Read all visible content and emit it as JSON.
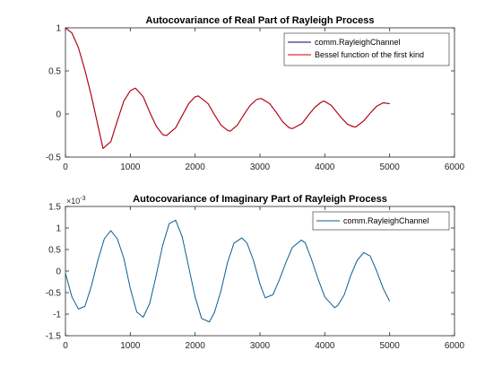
{
  "chart_data": [
    {
      "type": "line",
      "title": "Autocovariance of Real Part of Rayleigh Process",
      "xlabel": "",
      "ylabel": "",
      "xlim": [
        0,
        6000
      ],
      "ylim": [
        -0.5,
        1
      ],
      "xticks": [
        0,
        1000,
        2000,
        3000,
        4000,
        5000,
        6000
      ],
      "xtick_labels": [
        "0",
        "1000",
        "2000",
        "3000",
        "4000",
        "5000",
        "6000"
      ],
      "yticks": [
        -0.5,
        0,
        0.5,
        1
      ],
      "ytick_labels": [
        "-0.5",
        "0",
        "0.5",
        "1"
      ],
      "exponent_label": "",
      "grid": false,
      "legend_position": "top-right",
      "series": [
        {
          "name": "comm.RayleighChannel",
          "color": "#000080",
          "x": [
            0,
            100,
            200,
            300,
            400,
            500,
            580,
            700,
            800,
            900,
            1000,
            1080,
            1200,
            1300,
            1400,
            1500,
            1560,
            1700,
            1800,
            1900,
            2000,
            2050,
            2200,
            2300,
            2400,
            2500,
            2540,
            2650,
            2750,
            2850,
            2950,
            3020,
            3150,
            3250,
            3350,
            3450,
            3500,
            3650,
            3750,
            3850,
            3950,
            3990,
            4100,
            4250,
            4350,
            4450,
            4480,
            4600,
            4700,
            4800,
            4900,
            5000
          ],
          "values": [
            1,
            0.94,
            0.77,
            0.51,
            0.21,
            -0.13,
            -0.4,
            -0.32,
            -0.08,
            0.15,
            0.27,
            0.3,
            0.2,
            0.02,
            -0.14,
            -0.24,
            -0.25,
            -0.16,
            -0.02,
            0.12,
            0.2,
            0.21,
            0.12,
            -0.01,
            -0.13,
            -0.19,
            -0.2,
            -0.13,
            -0.01,
            0.1,
            0.17,
            0.18,
            0.12,
            0.02,
            -0.09,
            -0.16,
            -0.17,
            -0.11,
            -0.01,
            0.08,
            0.14,
            0.15,
            0.1,
            -0.04,
            -0.12,
            -0.15,
            -0.15,
            -0.08,
            0.01,
            0.09,
            0.13,
            0.12
          ]
        },
        {
          "name": "Bessel function of the first kind",
          "color": "#cc0000",
          "x": [
            0,
            100,
            200,
            300,
            400,
            500,
            580,
            700,
            800,
            900,
            1000,
            1080,
            1200,
            1300,
            1400,
            1500,
            1560,
            1700,
            1800,
            1900,
            2000,
            2050,
            2200,
            2300,
            2400,
            2500,
            2540,
            2650,
            2750,
            2850,
            2950,
            3020,
            3150,
            3250,
            3350,
            3450,
            3500,
            3650,
            3750,
            3850,
            3950,
            3990,
            4100,
            4250,
            4350,
            4450,
            4480,
            4600,
            4700,
            4800,
            4900,
            5000
          ],
          "values": [
            1,
            0.94,
            0.77,
            0.51,
            0.21,
            -0.13,
            -0.4,
            -0.32,
            -0.08,
            0.15,
            0.27,
            0.3,
            0.2,
            0.02,
            -0.14,
            -0.24,
            -0.25,
            -0.16,
            -0.02,
            0.12,
            0.2,
            0.21,
            0.12,
            -0.01,
            -0.13,
            -0.19,
            -0.2,
            -0.13,
            -0.01,
            0.1,
            0.17,
            0.18,
            0.12,
            0.02,
            -0.09,
            -0.16,
            -0.17,
            -0.11,
            -0.01,
            0.08,
            0.14,
            0.15,
            0.1,
            -0.04,
            -0.12,
            -0.15,
            -0.15,
            -0.08,
            0.01,
            0.09,
            0.13,
            0.12
          ]
        }
      ]
    },
    {
      "type": "line",
      "title": "Autocovariance of Imaginary Part of Rayleigh Process",
      "xlabel": "",
      "ylabel": "",
      "xlim": [
        0,
        6000
      ],
      "ylim": [
        -1.5,
        1.5
      ],
      "xticks": [
        0,
        1000,
        2000,
        3000,
        4000,
        5000,
        6000
      ],
      "xtick_labels": [
        "0",
        "1000",
        "2000",
        "3000",
        "4000",
        "5000",
        "6000"
      ],
      "yticks": [
        -1.5,
        -1,
        -0.5,
        0,
        0.5,
        1,
        1.5
      ],
      "ytick_labels": [
        "-1.5",
        "-1",
        "-0.5",
        "0",
        "0.5",
        "1",
        "1.5"
      ],
      "exponent_label": "×10",
      "exponent_power": "-3",
      "grid": false,
      "legend_position": "top-right",
      "series": [
        {
          "name": "comm.RayleighChannel",
          "color": "#0b5e8f",
          "x": [
            0,
            100,
            200,
            300,
            400,
            500,
            600,
            700,
            800,
            900,
            1000,
            1100,
            1200,
            1300,
            1400,
            1500,
            1600,
            1700,
            1800,
            1900,
            2000,
            2100,
            2220,
            2300,
            2400,
            2500,
            2600,
            2720,
            2800,
            2900,
            3000,
            3080,
            3200,
            3300,
            3400,
            3500,
            3640,
            3700,
            3800,
            3900,
            4000,
            4150,
            4200,
            4300,
            4400,
            4500,
            4600,
            4700,
            4800,
            4900,
            5000
          ],
          "values": [
            -0.05,
            -0.6,
            -0.88,
            -0.82,
            -0.35,
            0.25,
            0.75,
            0.94,
            0.75,
            0.3,
            -0.4,
            -0.95,
            -1.07,
            -0.75,
            -0.1,
            0.6,
            1.1,
            1.18,
            0.8,
            0.1,
            -0.6,
            -1.1,
            -1.18,
            -0.95,
            -0.45,
            0.2,
            0.65,
            0.77,
            0.65,
            0.25,
            -0.3,
            -0.62,
            -0.55,
            -0.2,
            0.2,
            0.55,
            0.72,
            0.65,
            0.25,
            -0.2,
            -0.6,
            -0.85,
            -0.8,
            -0.55,
            -0.1,
            0.25,
            0.43,
            0.35,
            0.0,
            -0.4,
            -0.7
          ]
        }
      ]
    }
  ]
}
